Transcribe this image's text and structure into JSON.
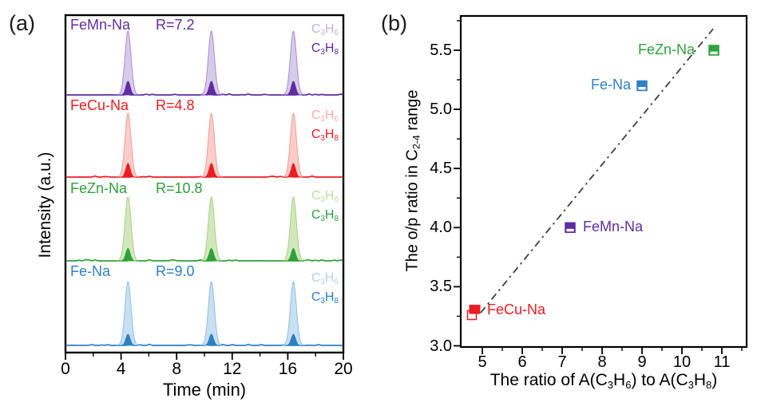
{
  "panels": {
    "a": {
      "tag": "(a)"
    },
    "b": {
      "tag": "(b)"
    }
  },
  "chart_data": [
    {
      "id": "panel-a",
      "type": "line",
      "description": "Stacked GC chromatogram traces, propylene (light) and propane (dark) peaks",
      "xlabel": "Time (min)",
      "ylabel": "Intensity (a.u.)",
      "xlim": [
        0,
        20
      ],
      "xticks": [
        0,
        4,
        8,
        12,
        16,
        20
      ],
      "xminorticks": [
        2,
        6,
        10,
        14,
        18
      ],
      "grid": false,
      "peak_times_min": [
        4.5,
        10.5,
        16.4
      ],
      "peak_species": [
        {
          "role": "light",
          "formula": [
            {
              "t": "C"
            },
            {
              "t": "3",
              "sub": true
            },
            {
              "t": "H"
            },
            {
              "t": "6",
              "sub": true
            }
          ]
        },
        {
          "role": "dark",
          "formula": [
            {
              "t": "C"
            },
            {
              "t": "3",
              "sub": true
            },
            {
              "t": "H"
            },
            {
              "t": "8",
              "sub": true
            }
          ]
        }
      ],
      "series": [
        {
          "name": "FeMn-Na",
          "r_label": "R=7.2",
          "color": "#5F2DA0",
          "light_fill": "#D7CBEA",
          "light_stroke": "#A78FD0",
          "light_text": "#C4B2E0",
          "light_amp": 1.0,
          "dark_amp": 0.22
        },
        {
          "name": "FeCu-Na",
          "r_label": "R=4.8",
          "color": "#EC1C21",
          "light_fill": "#FACDC8",
          "light_stroke": "#F29E96",
          "light_text": "#F7AFA8",
          "light_amp": 1.0,
          "dark_amp": 0.22
        },
        {
          "name": "FeZn-Na",
          "r_label": "R=10.8",
          "color": "#2FA03C",
          "light_fill": "#D2E8BC",
          "light_stroke": "#A3D383",
          "light_text": "#BCDF9E",
          "light_amp": 1.0,
          "dark_amp": 0.2
        },
        {
          "name": "Fe-Na",
          "r_label": "R=9.0",
          "color": "#2E80C4",
          "light_fill": "#C8E0F2",
          "light_stroke": "#92C0E4",
          "light_text": "#B2D2EC",
          "light_amp": 1.0,
          "dark_amp": 0.18
        }
      ]
    },
    {
      "id": "panel-b",
      "type": "scatter",
      "xlabel_segments": [
        {
          "t": "The ratio of A(C"
        },
        {
          "t": "3",
          "sub": true
        },
        {
          "t": "H"
        },
        {
          "t": "6",
          "sub": true
        },
        {
          "t": ") to A(C"
        },
        {
          "t": "3",
          "sub": true
        },
        {
          "t": "H"
        },
        {
          "t": "8",
          "sub": true
        },
        {
          "t": ")"
        }
      ],
      "ylabel_segments": [
        {
          "t": "The o/p ratio in C"
        },
        {
          "t": "2-4",
          "sub": true
        },
        {
          "t": " range"
        }
      ],
      "xlim": [
        4.46,
        11.62
      ],
      "ylim": [
        2.99,
        5.79
      ],
      "xticks": [
        5,
        6,
        7,
        8,
        9,
        10,
        11
      ],
      "xminorticks": [
        5.5,
        6.5,
        7.5,
        8.5,
        9.5,
        10.5,
        11.5
      ],
      "yticks": [
        "3.0",
        "3.5",
        "4.0",
        "4.5",
        "5.0",
        "5.5"
      ],
      "yminorticks": [
        3.25,
        3.75,
        4.25,
        4.75,
        5.25,
        5.75
      ],
      "grid": false,
      "legend": "none",
      "points": [
        {
          "name": "FeCu-Na",
          "x": 4.8,
          "y": 3.3,
          "color": "#EC1C21",
          "marker": "double",
          "label_side": "right"
        },
        {
          "name": "FeMn-Na",
          "x": 7.2,
          "y": 4.0,
          "color": "#5F2DA0",
          "marker": "half_open_bottom",
          "label_side": "right"
        },
        {
          "name": "Fe-Na",
          "x": 9.0,
          "y": 5.2,
          "color": "#2E80C4",
          "marker": "half_open_bottom",
          "label_side": "left"
        },
        {
          "name": "FeZn-Na",
          "x": 10.8,
          "y": 5.5,
          "color": "#2FA03C",
          "marker": "half_open_bottom",
          "label_side": "left"
        }
      ],
      "trend_line": {
        "x1": 4.96,
        "y1": 3.28,
        "x2": 10.78,
        "y2": 5.68,
        "color": "#3F3F3F",
        "style": "dash-dot"
      }
    }
  ]
}
